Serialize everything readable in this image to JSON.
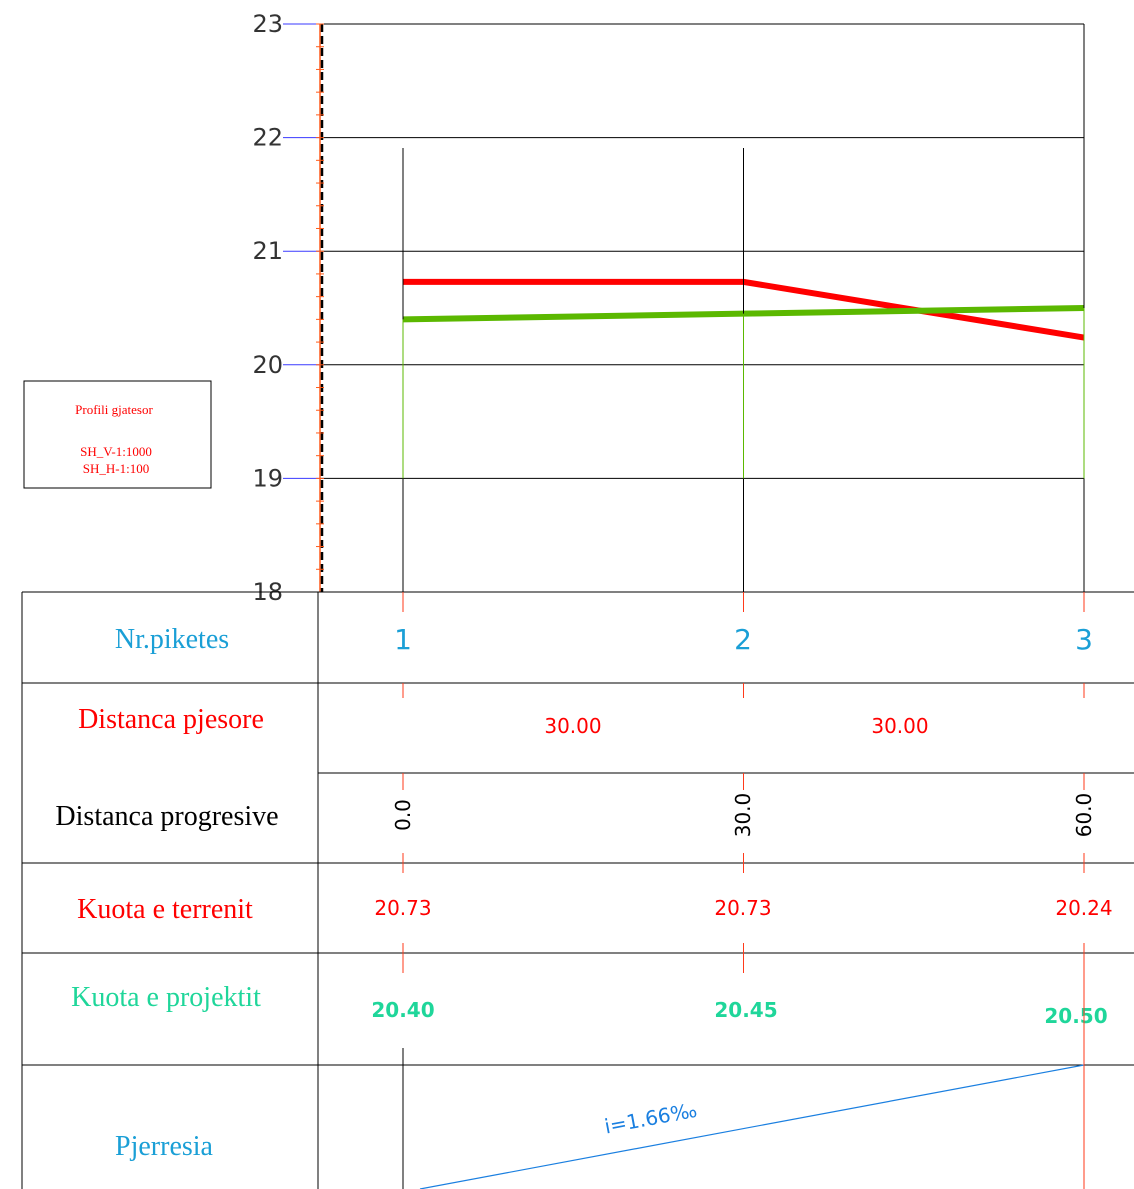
{
  "legend": {
    "title": "Profili gjatesor",
    "scale_v": "SH_V-1:1000",
    "scale_h": "SH_H-1:100"
  },
  "colors": {
    "terrain": "#ff0000",
    "project": "#5bb800",
    "piket": "#1a9fd6",
    "project_text": "#1fd69a",
    "slope": "#1a7fe0",
    "grid": "#000000",
    "axis_tick": "#3a3aff"
  },
  "chart_data": {
    "type": "line",
    "y_ticks": [
      "18",
      "19",
      "20",
      "21",
      "22",
      "23"
    ],
    "ylim": [
      18,
      23
    ],
    "x": [
      0,
      30,
      60
    ],
    "series": [
      {
        "key": "terrain",
        "values": [
          20.73,
          20.73,
          20.24
        ]
      },
      {
        "key": "project",
        "values": [
          20.4,
          20.45,
          20.5
        ]
      }
    ]
  },
  "table": {
    "rows": [
      {
        "key": "piketes",
        "label": "Nr.piketes"
      },
      {
        "key": "distanca_pjesore",
        "label": "Distanca pjesore"
      },
      {
        "key": "distanca_progresive",
        "label": "Distanca progresive"
      },
      {
        "key": "kuota_terrenit",
        "label": "Kuota e terrenit"
      },
      {
        "key": "kuota_projektit",
        "label": "Kuota e projektit"
      },
      {
        "key": "pjerresia",
        "label": "Pjerresia"
      }
    ],
    "piket_numbers": [
      "1",
      "2",
      "3"
    ],
    "distanca_pjesore": [
      "30.00",
      "30.00"
    ],
    "distanca_progresive": [
      "0.0",
      "30.0",
      "60.0"
    ],
    "kuota_terrenit": [
      "20.73",
      "20.73",
      "20.24"
    ],
    "kuota_projektit": [
      "20.40",
      "20.45",
      "20.50"
    ],
    "pjerresia": "i=1.66‰"
  }
}
